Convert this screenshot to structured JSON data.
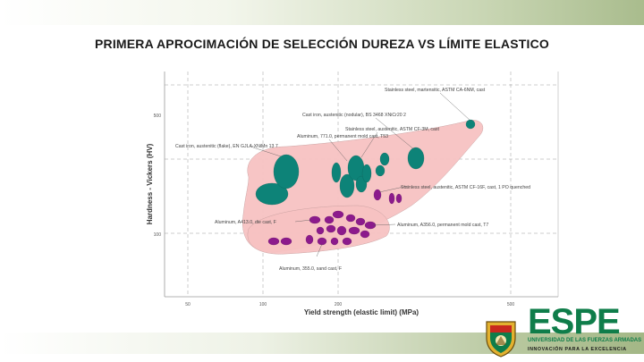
{
  "slide": {
    "title": "PRIMERA APROCIMACIÓN DE SELECCIÓN DUREZA VS LÍMITE ELASTICO"
  },
  "branding": {
    "logo_text": "ESPE",
    "university": "UNIVERSIDAD DE LAS FUERZAS ARMADAS",
    "motto": "INNOVACIÓN PARA LA EXCELENCIA",
    "brand_color": "#0f7d4a",
    "shield_icon": "university-shield-icon"
  },
  "colors": {
    "envelope_fill": "#f7c2c2",
    "teal_bubbles": "#0d8378",
    "purple_bubbles": "#8c1a8c"
  },
  "chart_data": {
    "type": "scatter",
    "title": "",
    "xlabel": "Yield strength (elastic limit) (MPa)",
    "ylabel": "Hardness - Vickers (HV)",
    "x_scale": "log",
    "y_scale": "log",
    "x_tick_labels": [
      "50",
      "100",
      "200",
      "500"
    ],
    "y_tick_labels": [
      "100",
      "500"
    ],
    "grid": "dashed",
    "annotations": [
      "Stainless steel, martensitic, ASTM CA-6NM, cast",
      "Cast iron, austenitic (nodular), BS 3468 XNiCr20 2",
      "Stainless steel, austenitic, ASTM CF-3M, cast",
      "Aluminum, 771.0, permanent mold cast, T53",
      "Cast iron, austenitic (flake), EN GJLA-XNiMn 13 7",
      "Stainless steel, austenitic, ASTM CF-16F, cast, 1 PO quenched",
      "Aluminum, A413.0, die cast, F",
      "Aluminum, A356.0, permanent mold cast, T7",
      "Aluminum, 355.0, sand cast, F"
    ]
  }
}
